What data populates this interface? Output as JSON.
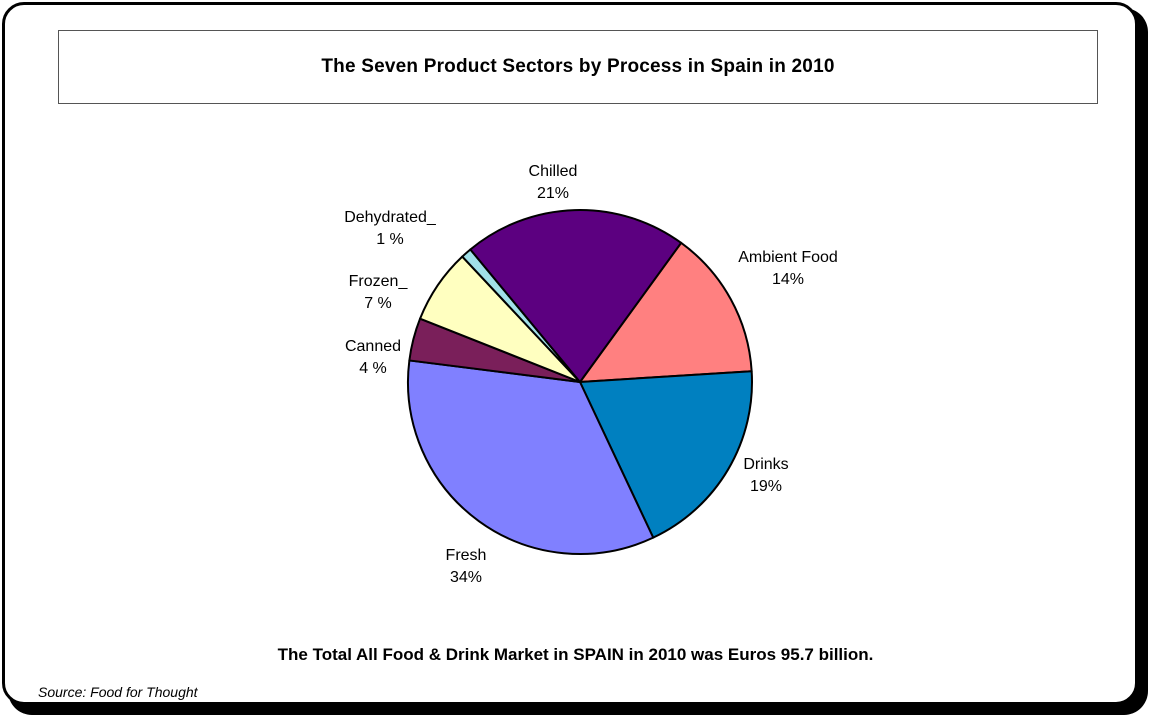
{
  "chart_data": {
    "type": "pie",
    "title": "The Seven Product Sectors by Process in Spain in 2010",
    "slices": [
      {
        "label": "Ambient Food",
        "value": 14,
        "display": "14%",
        "color": "#ff8080"
      },
      {
        "label": "Drinks",
        "value": 19,
        "display": "19%",
        "color": "#0080c0"
      },
      {
        "label": "Fresh",
        "value": 34,
        "display": "34%",
        "color": "#8080ff"
      },
      {
        "label": "Canned",
        "value": 4,
        "display": "4 %",
        "color": "#7a1f5a"
      },
      {
        "label": "Frozen_",
        "value": 7,
        "display": "7 %",
        "color": "#ffffc0"
      },
      {
        "label": "Dehydrated_",
        "value": 1,
        "display": "1 %",
        "color": "#a0e0e8"
      },
      {
        "label": "Chilled",
        "value": 21,
        "display": "21%",
        "color": "#5c0080"
      }
    ],
    "legend": "none"
  },
  "footer": "The Total All Food & Drink Market in SPAIN in 2010 was Euros  95.7 billion.",
  "source": "Source: Food for Thought"
}
